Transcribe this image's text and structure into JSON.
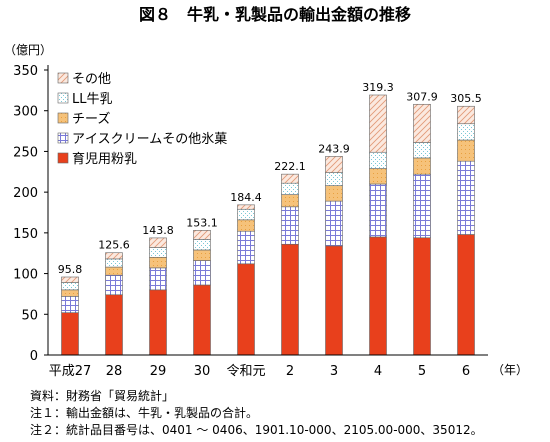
{
  "chart_data": {
    "type": "bar",
    "stacked": true,
    "title": "図８　牛乳・乳製品の輸出金額の推移",
    "ylabel": "（億円）",
    "x_unit": "（年）",
    "ylim": [
      0,
      350
    ],
    "yticks": [
      0,
      50,
      100,
      150,
      200,
      250,
      300,
      350
    ],
    "categories": [
      "平成27",
      "28",
      "29",
      "30",
      "令和元",
      "2",
      "3",
      "4",
      "5",
      "6"
    ],
    "series": [
      {
        "name": "育児用粉乳",
        "values": [
          52,
          74,
          80,
          86,
          112,
          136,
          134,
          145,
          144,
          148
        ],
        "color": "#e8401c"
      },
      {
        "name": "アイスクリームその他氷菓",
        "values": [
          20,
          24,
          27,
          30,
          40,
          46,
          55,
          65,
          78,
          90
        ],
        "color": "#9b9be6"
      },
      {
        "name": "チーズ",
        "values": [
          8,
          10,
          13,
          13,
          14,
          15,
          19,
          19,
          20,
          26
        ],
        "color": "#f6c27a"
      },
      {
        "name": "LL牛乳",
        "values": [
          9,
          10,
          12,
          13,
          13,
          14,
          16,
          20,
          19,
          20
        ],
        "color": "#d9f2f6"
      },
      {
        "name": "その他",
        "values": [
          6.8,
          7.6,
          11.8,
          11.1,
          5.4,
          11.1,
          19.9,
          70.3,
          46.9,
          21.5
        ],
        "color": "#f4c9b3"
      }
    ],
    "totals": [
      "95.8",
      "125.6",
      "143.8",
      "153.1",
      "184.4",
      "222.1",
      "243.9",
      "319.3",
      "307.9",
      "305.5"
    ],
    "legend_position": "top-left",
    "grid": false
  },
  "notes": [
    "資料：財務省「貿易統計」",
    "注１：輸出金額は、牛乳・乳製品の合計。",
    "注２：統計品目番号は、0401 〜 0406、1901.10-000、2105.00-000、35012。"
  ]
}
